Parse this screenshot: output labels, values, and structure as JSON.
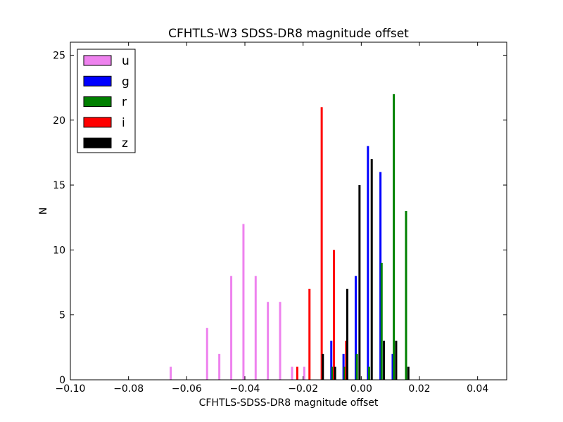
{
  "chart_data": {
    "type": "bar",
    "title": "CFHTLS-W3 SDSS-DR8 magnitude offset",
    "xlabel": "CFHTLS-SDSS-DR8 magnitude offset",
    "ylabel": "N",
    "xlim": [
      -0.1,
      0.05
    ],
    "ylim": [
      0,
      26
    ],
    "xticks": [
      -0.1,
      -0.08,
      -0.06,
      -0.04,
      -0.02,
      0.0,
      0.02,
      0.04
    ],
    "xtick_labels": [
      "−0.10",
      "−0.08",
      "−0.06",
      "−0.04",
      "−0.02",
      "0.00",
      "0.02",
      "0.04"
    ],
    "yticks": [
      0,
      5,
      10,
      15,
      20,
      25
    ],
    "ytick_labels": [
      "0",
      "5",
      "10",
      "15",
      "20",
      "25"
    ],
    "grid": false,
    "legend_position": "top-left",
    "series": [
      {
        "name": "u",
        "color": "#ee82ee",
        "bars": [
          {
            "x": -0.0655,
            "y": 1
          },
          {
            "x": -0.053,
            "y": 4
          },
          {
            "x": -0.0488,
            "y": 2
          },
          {
            "x": -0.0447,
            "y": 8
          },
          {
            "x": -0.0405,
            "y": 12
          },
          {
            "x": -0.0363,
            "y": 8
          },
          {
            "x": -0.0321,
            "y": 6
          },
          {
            "x": -0.0279,
            "y": 6
          },
          {
            "x": -0.0238,
            "y": 1
          },
          {
            "x": -0.0196,
            "y": 1
          }
        ]
      },
      {
        "name": "g",
        "color": "#0000ff",
        "bars": [
          {
            "x": -0.0103,
            "y": 3
          },
          {
            "x": -0.0061,
            "y": 2
          },
          {
            "x": -0.0019,
            "y": 8
          },
          {
            "x": 0.0023,
            "y": 18
          },
          {
            "x": 0.0066,
            "y": 16
          },
          {
            "x": 0.0108,
            "y": 2
          }
        ]
      },
      {
        "name": "r",
        "color": "#008000",
        "bars": [
          {
            "x": -0.0099,
            "y": 1
          },
          {
            "x": -0.0057,
            "y": 1
          },
          {
            "x": -0.0015,
            "y": 2
          },
          {
            "x": 0.0027,
            "y": 1
          },
          {
            "x": 0.007,
            "y": 9
          },
          {
            "x": 0.0112,
            "y": 22
          },
          {
            "x": 0.0154,
            "y": 13
          }
        ]
      },
      {
        "name": "i",
        "color": "#ff0000",
        "bars": [
          {
            "x": -0.022,
            "y": 1
          },
          {
            "x": -0.0178,
            "y": 7
          },
          {
            "x": -0.0136,
            "y": 21
          },
          {
            "x": -0.0094,
            "y": 10
          },
          {
            "x": -0.0052,
            "y": 3
          }
        ]
      },
      {
        "name": "z",
        "color": "#000000",
        "bars": [
          {
            "x": -0.0132,
            "y": 2
          },
          {
            "x": -0.009,
            "y": 1
          },
          {
            "x": -0.0048,
            "y": 7
          },
          {
            "x": -0.0006,
            "y": 15
          },
          {
            "x": 0.0036,
            "y": 17
          },
          {
            "x": 0.0078,
            "y": 3
          },
          {
            "x": 0.012,
            "y": 3
          },
          {
            "x": 0.0162,
            "y": 1
          }
        ]
      }
    ]
  }
}
